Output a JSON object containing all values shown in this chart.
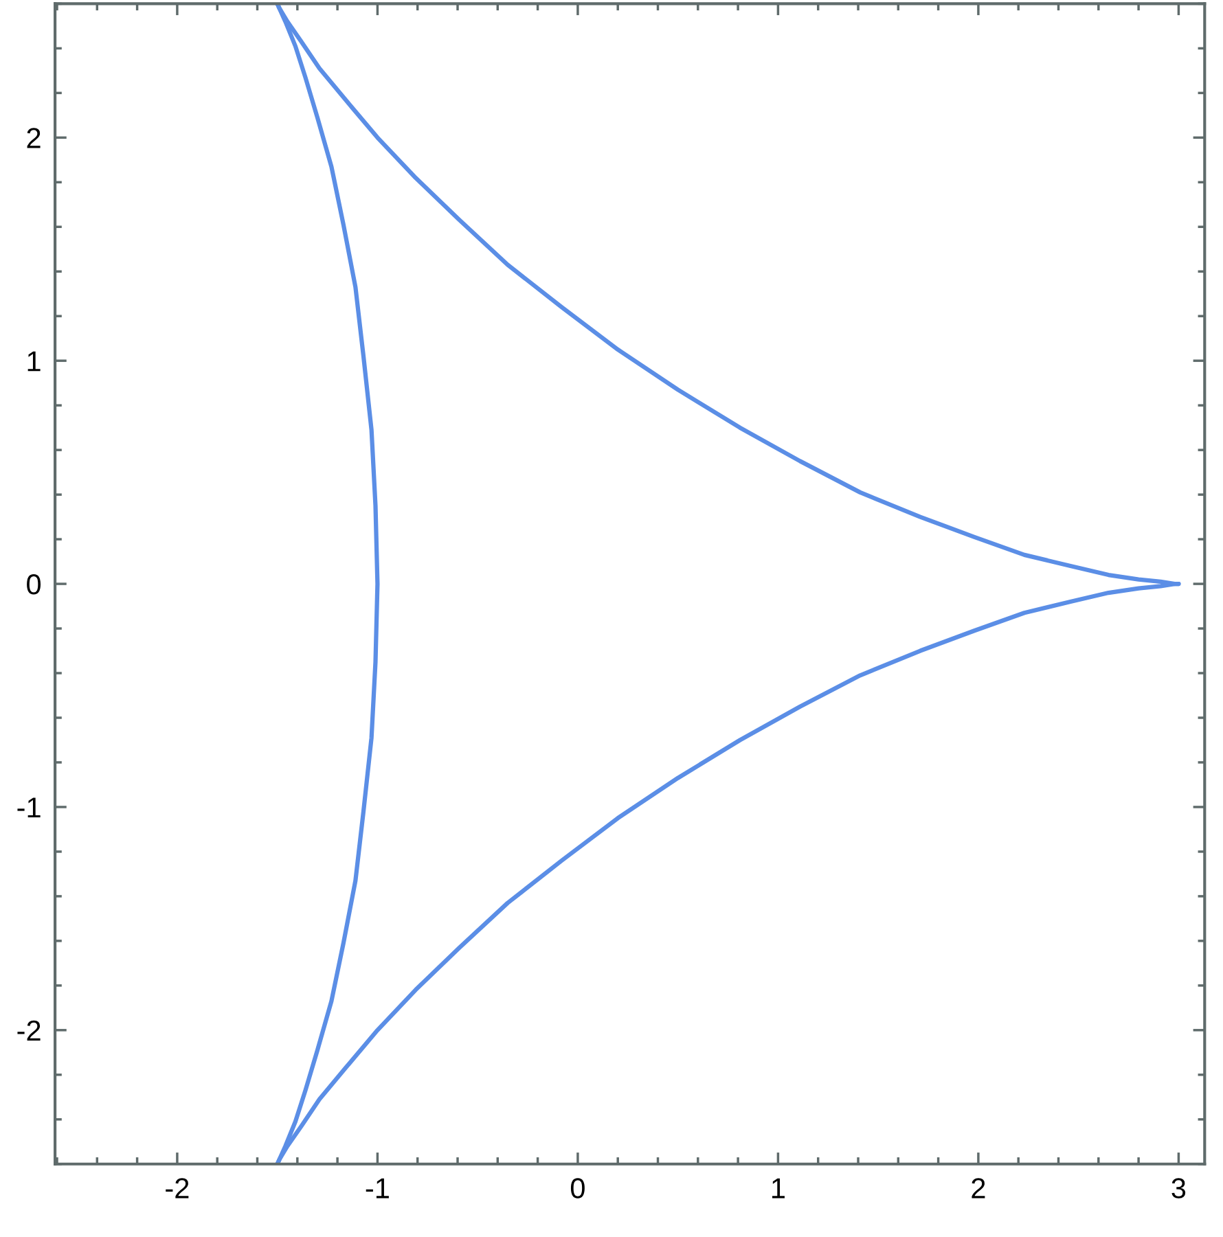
{
  "chart_data": {
    "type": "line",
    "series": [
      {
        "color": "#5b8ee6",
        "x": [
          3,
          2.98,
          2.91,
          2.8,
          2.65,
          2.46,
          2.23,
          1.98,
          1.71,
          1.41,
          1.11,
          0.81,
          0.5,
          0.2,
          -0.08,
          -0.35,
          -0.59,
          -0.81,
          -1,
          -1.16,
          -1.29,
          -1.38,
          -1.45,
          -1.49,
          -1.5
        ],
        "values": [
          0,
          0,
          0.01,
          0.02,
          0.04,
          0.08,
          0.13,
          0.21,
          0.3,
          0.41,
          0.55,
          0.7,
          0.87,
          1.05,
          1.24,
          1.43,
          1.63,
          1.82,
          2,
          2.17,
          2.31,
          2.43,
          2.52,
          2.58,
          2.6
        ]
      },
      {
        "color": "#5b8ee6",
        "x": [
          -1.5,
          -1.49,
          -1.46,
          -1.41,
          -1.36,
          -1.3,
          -1.23,
          -1.17,
          -1.11,
          -1.07,
          -1.03,
          -1.01,
          -1,
          -1.01,
          -1.03,
          -1.07,
          -1.11,
          -1.17,
          -1.23,
          -1.3,
          -1.36,
          -1.41,
          -1.46,
          -1.49,
          -1.5
        ],
        "values": [
          2.6,
          2.58,
          2.52,
          2.41,
          2.27,
          2.09,
          1.87,
          1.61,
          1.33,
          1.02,
          0.69,
          0.35,
          0,
          -0.35,
          -0.69,
          -1.02,
          -1.33,
          -1.61,
          -1.87,
          -2.09,
          -2.27,
          -2.41,
          -2.52,
          -2.58,
          -2.6
        ]
      },
      {
        "color": "#5b8ee6",
        "x": [
          -1.5,
          -1.49,
          -1.45,
          -1.38,
          -1.29,
          -1.16,
          -1,
          -0.81,
          -0.59,
          -0.35,
          -0.08,
          0.2,
          0.5,
          0.81,
          1.11,
          1.41,
          1.71,
          1.98,
          2.23,
          2.46,
          2.65,
          2.8,
          2.91,
          2.98,
          3
        ],
        "values": [
          -2.6,
          -2.58,
          -2.52,
          -2.43,
          -2.31,
          -2.17,
          -2,
          -1.82,
          -1.63,
          -1.43,
          -1.24,
          -1.05,
          -0.87,
          -0.7,
          -0.55,
          -0.41,
          -0.3,
          -0.21,
          -0.13,
          -0.08,
          -0.04,
          -0.02,
          -0.01,
          0,
          0
        ]
      }
    ],
    "xlim": [
      -2.61,
      3.13
    ],
    "ylim": [
      -2.6,
      2.6
    ],
    "xticks": [
      {
        "value": -2,
        "label": "-2"
      },
      {
        "value": -1,
        "label": "-1"
      },
      0,
      1,
      2,
      3
    ],
    "yticks": [
      {
        "value": -2,
        "label": "-2"
      },
      {
        "value": -1,
        "label": "-1"
      },
      0,
      1,
      2
    ],
    "grid": false,
    "legend": false,
    "marker": "none",
    "line_style": "solid"
  }
}
